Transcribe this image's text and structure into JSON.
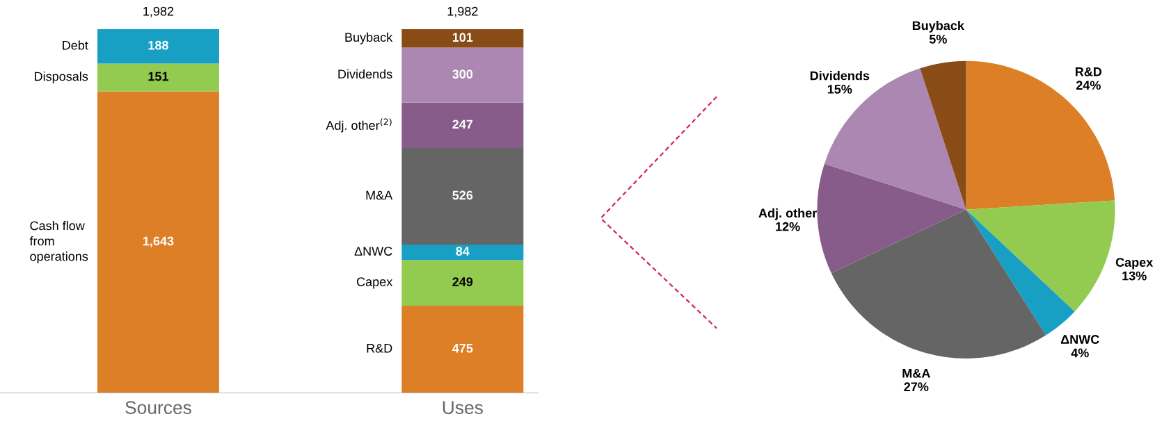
{
  "chart_data": [
    {
      "type": "bar",
      "stacked": true,
      "categories": [
        "Sources",
        "Uses"
      ],
      "data_labels": true,
      "totals": [
        "1,982",
        "1,982"
      ],
      "legend": false,
      "grid": false,
      "series": [
        {
          "name": "Cash flow\nfrom\noperations",
          "color": "#dc7f27",
          "values": [
            1643,
            null
          ],
          "value_labels": [
            "1,643",
            null
          ]
        },
        {
          "name": "Disposals",
          "color": "#93ca50",
          "values": [
            151,
            null
          ],
          "value_labels": [
            "151",
            null
          ]
        },
        {
          "name": "Debt",
          "color": "#189fc4",
          "values": [
            188,
            null
          ],
          "value_labels": [
            "188",
            null
          ]
        },
        {
          "name": "R&D",
          "color": "#dc7f27",
          "values": [
            null,
            475
          ],
          "value_labels": [
            null,
            "475"
          ]
        },
        {
          "name": "Capex",
          "color": "#93ca50",
          "values": [
            null,
            249
          ],
          "value_labels": [
            null,
            "249"
          ]
        },
        {
          "name": "ΔNWC",
          "color": "#189fc4",
          "values": [
            null,
            84
          ],
          "value_labels": [
            null,
            "84"
          ]
        },
        {
          "name": "M&A",
          "color": "#656565",
          "values": [
            null,
            526
          ],
          "value_labels": [
            null,
            "526"
          ]
        },
        {
          "name": "Adj. other$^{(2)}$",
          "color": "#875b8a",
          "values": [
            null,
            247
          ],
          "value_labels": [
            null,
            "247"
          ]
        },
        {
          "name": "Dividends",
          "color": "#ab87b1",
          "values": [
            null,
            300
          ],
          "value_labels": [
            null,
            "300"
          ]
        },
        {
          "name": "Buyback",
          "color": "#8a4c17",
          "values": [
            null,
            101
          ],
          "value_labels": [
            null,
            "101"
          ]
        }
      ]
    },
    {
      "type": "pie",
      "categories": [
        "R&D",
        "Capex",
        "ΔNWC",
        "M&A",
        "Adj. other",
        "Dividends",
        "Buyback"
      ],
      "values": [
        24,
        13,
        4,
        27,
        12,
        15,
        5
      ],
      "value_labels": [
        "24%",
        "13%",
        "4%",
        "27%",
        "12%",
        "15%",
        "5%"
      ],
      "colors": [
        "#dc7f27",
        "#93ca50",
        "#189fc4",
        "#656565",
        "#875b8a",
        "#ab87b1",
        "#8a4c17"
      ],
      "legend": false
    }
  ]
}
